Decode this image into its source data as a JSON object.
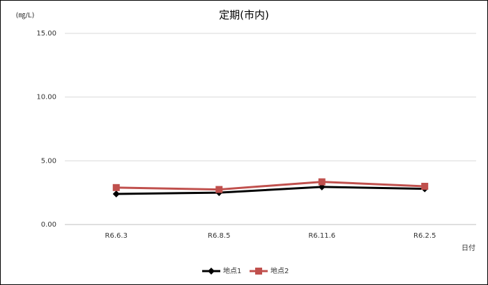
{
  "chart_data": {
    "type": "line",
    "title": "定期(市内)",
    "y_label": "(㎎/L)",
    "x_label": "日付",
    "categories": [
      "R6.6.3",
      "R6.8.5",
      "R6.11.6",
      "R6.2.5"
    ],
    "series": [
      {
        "name": "地点1",
        "color": "#000000",
        "marker": "diamond",
        "values": [
          2.4,
          2.5,
          2.95,
          2.8
        ]
      },
      {
        "name": "地点2",
        "color": "#c0504d",
        "marker": "square",
        "values": [
          2.9,
          2.75,
          3.35,
          3.0
        ]
      }
    ],
    "ylim": [
      0,
      15
    ],
    "yticks": [
      {
        "value": 0,
        "label": "0.00"
      },
      {
        "value": 5,
        "label": "5.00"
      },
      {
        "value": 10,
        "label": "10.00"
      },
      {
        "value": 15,
        "label": "15.00"
      }
    ],
    "grid": true,
    "legend": "bottom"
  }
}
